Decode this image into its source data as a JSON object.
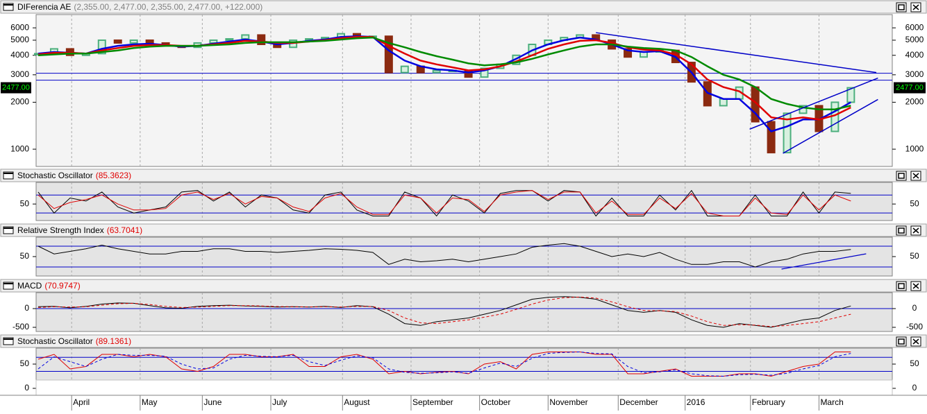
{
  "chart_data": [
    {
      "type": "candlestick",
      "title": "DIFerencia AE",
      "subtitle": "(2,355.00, 2,477.00, 2,355.00, 2,477.00, +122.000)",
      "values": [
        4100,
        4400,
        4000,
        4100,
        5000,
        4800,
        5000,
        4800,
        4600,
        4500,
        4800,
        5000,
        5100,
        5400,
        4700,
        4500,
        5000,
        5100,
        5200,
        5500,
        5300,
        5300,
        3100,
        3400,
        3100,
        3200,
        3200,
        2900,
        3300,
        3500,
        4000,
        4700,
        5000,
        5200,
        5400,
        5000,
        4400,
        3900,
        4200,
        4300,
        3600,
        2700,
        1900,
        2100,
        2500,
        1500,
        950,
        1700,
        1900,
        1300,
        2000,
        2477
      ],
      "up_color": "#4caf7d",
      "down_color": "#8b2a10",
      "series": [
        {
          "color": "#0000e0",
          "values": [
            4100,
            4200,
            4150,
            4100,
            4400,
            4600,
            4700,
            4750,
            4650,
            4550,
            4600,
            4750,
            4900,
            5050,
            4900,
            4700,
            4800,
            4950,
            5050,
            5250,
            5300,
            5250,
            4300,
            3700,
            3400,
            3250,
            3200,
            3100,
            3200,
            3400,
            3800,
            4300,
            4700,
            5000,
            5200,
            5050,
            4700,
            4300,
            4200,
            4250,
            3900,
            3100,
            2300,
            2100,
            2100,
            1700,
            1300,
            1400,
            1550,
            1550,
            1750,
            2000
          ]
        },
        {
          "color": "#e00000",
          "values": [
            4050,
            4150,
            4150,
            4100,
            4300,
            4450,
            4600,
            4650,
            4650,
            4600,
            4600,
            4700,
            4800,
            4950,
            4900,
            4800,
            4800,
            4900,
            5000,
            5150,
            5250,
            5250,
            4600,
            4100,
            3700,
            3500,
            3350,
            3200,
            3250,
            3400,
            3650,
            4000,
            4400,
            4700,
            4950,
            5000,
            4800,
            4500,
            4350,
            4300,
            4050,
            3500,
            2800,
            2500,
            2350,
            2000,
            1600,
            1550,
            1600,
            1550,
            1650,
            1850
          ]
        },
        {
          "color": "#008a00",
          "values": [
            4000,
            4050,
            4100,
            4100,
            4200,
            4300,
            4450,
            4550,
            4600,
            4600,
            4600,
            4650,
            4700,
            4800,
            4850,
            4850,
            4850,
            4900,
            4950,
            5050,
            5150,
            5200,
            4800,
            4500,
            4200,
            3950,
            3750,
            3550,
            3450,
            3500,
            3600,
            3800,
            4050,
            4300,
            4550,
            4700,
            4700,
            4550,
            4450,
            4400,
            4300,
            3900,
            3400,
            3000,
            2800,
            2500,
            2100,
            1950,
            1850,
            1800,
            1800,
            1900
          ]
        }
      ],
      "log_scale": true,
      "ylim": [
        775,
        7300
      ],
      "yticks": [
        1000,
        2000,
        3000,
        4000,
        5000,
        6000
      ],
      "last_price": {
        "value": 2477,
        "label": "2477.00"
      },
      "levels": [
        3070,
        2770
      ],
      "level_color": "#0000c8",
      "trendlines": [
        {
          "from": [
            35,
            5590
          ],
          "to": [
            52.6,
            3100
          ]
        },
        {
          "from": [
            44.65,
            1344
          ],
          "to": [
            52.7,
            2857
          ]
        },
        {
          "from": [
            46.74,
            941
          ],
          "to": [
            52.7,
            2083
          ]
        }
      ],
      "xlim": [
        -0.13,
        53.6
      ],
      "xticks": [
        {
          "value": 2.1,
          "label": "April"
        },
        {
          "value": 6.4,
          "label": "May"
        },
        {
          "value": 10.3,
          "label": "June"
        },
        {
          "value": 14.6,
          "label": "July"
        },
        {
          "value": 19.1,
          "label": "August"
        },
        {
          "value": 23.4,
          "label": "September"
        },
        {
          "value": 27.7,
          "label": "October"
        },
        {
          "value": 32,
          "label": "November"
        },
        {
          "value": 36.4,
          "label": "December"
        },
        {
          "value": 40.6,
          "label": "2016"
        },
        {
          "value": 44.7,
          "label": "February"
        },
        {
          "value": 49,
          "label": "March"
        }
      ]
    },
    {
      "type": "line",
      "title": "Stochastic Oscillator",
      "subtitle": "(85.3623)",
      "series": [
        {
          "color": "#000000",
          "values": [
            90,
            20,
            70,
            60,
            90,
            40,
            20,
            30,
            40,
            90,
            95,
            60,
            90,
            40,
            80,
            70,
            30,
            20,
            80,
            90,
            30,
            10,
            10,
            90,
            70,
            10,
            80,
            60,
            20,
            85,
            95,
            95,
            60,
            95,
            90,
            10,
            70,
            10,
            10,
            80,
            30,
            95,
            10,
            10,
            10,
            80,
            10,
            10,
            90,
            20,
            90,
            85.36
          ]
        },
        {
          "color": "#e00000",
          "values": [
            80,
            35,
            55,
            65,
            80,
            50,
            30,
            30,
            35,
            80,
            90,
            65,
            85,
            50,
            75,
            70,
            40,
            25,
            70,
            85,
            40,
            15,
            15,
            80,
            70,
            20,
            70,
            65,
            25,
            80,
            90,
            95,
            65,
            90,
            90,
            20,
            60,
            15,
            15,
            70,
            35,
            85,
            20,
            10,
            10,
            70,
            20,
            15,
            80,
            30,
            80,
            60
          ]
        }
      ],
      "ylim": [
        -5,
        122
      ],
      "yticks": [
        50
      ],
      "levels": [
        80,
        20
      ],
      "level_color": "#0000c8"
    },
    {
      "type": "line",
      "title": "Relative Strength Index",
      "subtitle": "(63.7041)",
      "series": [
        {
          "color": "#000000",
          "values": [
            70,
            55,
            60,
            65,
            72,
            65,
            60,
            55,
            55,
            60,
            60,
            65,
            65,
            60,
            60,
            58,
            60,
            62,
            65,
            64,
            62,
            58,
            35,
            45,
            40,
            42,
            45,
            40,
            45,
            50,
            55,
            68,
            72,
            75,
            70,
            60,
            50,
            55,
            50,
            58,
            45,
            35,
            35,
            40,
            40,
            30,
            40,
            45,
            55,
            60,
            60,
            63.7
          ]
        }
      ],
      "ylim": [
        12.7,
        87.3
      ],
      "yticks": [
        50
      ],
      "levels": [
        70,
        30
      ],
      "level_color": "#0000c8",
      "trendlines": [
        {
          "from": [
            46.65,
            26
          ],
          "to": [
            51.96,
            55.3
          ]
        }
      ]
    },
    {
      "type": "line",
      "title": "MACD",
      "subtitle": "(70.9747)",
      "series": [
        {
          "color": "#000000",
          "values": [
            50,
            60,
            20,
            60,
            120,
            150,
            140,
            80,
            20,
            10,
            60,
            80,
            90,
            70,
            60,
            40,
            50,
            40,
            60,
            30,
            80,
            50,
            -150,
            -400,
            -450,
            -350,
            -300,
            -250,
            -150,
            -50,
            100,
            250,
            300,
            320,
            300,
            250,
            100,
            -50,
            -100,
            -50,
            -100,
            -300,
            -450,
            -500,
            -400,
            -450,
            -500,
            -400,
            -300,
            -250,
            -50,
            70.97
          ]
        },
        {
          "color": "#e00000",
          "dash": true,
          "values": [
            30,
            50,
            40,
            50,
            90,
            130,
            140,
            110,
            60,
            30,
            40,
            60,
            80,
            80,
            70,
            55,
            50,
            45,
            50,
            40,
            60,
            55,
            -50,
            -250,
            -380,
            -400,
            -350,
            -300,
            -230,
            -150,
            -20,
            120,
            230,
            290,
            310,
            280,
            180,
            50,
            -50,
            -60,
            -80,
            -200,
            -350,
            -450,
            -430,
            -440,
            -480,
            -450,
            -400,
            -350,
            -250,
            -150
          ]
        }
      ],
      "ylim": [
        -611,
        426
      ],
      "yticks": [
        0,
        -500
      ],
      "levels": [
        0
      ],
      "level_color": "#0000c8"
    },
    {
      "type": "line",
      "title": "Stochastic Oscillator",
      "subtitle": "(89.1361)",
      "series": [
        {
          "color": "#e00000",
          "values": [
            60,
            70,
            40,
            45,
            70,
            70,
            65,
            70,
            65,
            40,
            35,
            45,
            70,
            70,
            65,
            65,
            70,
            45,
            45,
            65,
            70,
            60,
            30,
            35,
            30,
            33,
            35,
            30,
            50,
            55,
            40,
            70,
            75,
            75,
            75,
            70,
            70,
            30,
            30,
            35,
            40,
            25,
            25,
            25,
            30,
            30,
            25,
            35,
            45,
            50,
            75,
            75
          ]
        },
        {
          "color": "#0000e0",
          "dash": true,
          "values": [
            40,
            65,
            55,
            45,
            60,
            70,
            68,
            68,
            66,
            50,
            40,
            42,
            60,
            68,
            66,
            65,
            68,
            55,
            47,
            58,
            67,
            63,
            40,
            33,
            31,
            32,
            34,
            31,
            42,
            52,
            45,
            62,
            72,
            74,
            75,
            72,
            71,
            45,
            32,
            34,
            38,
            30,
            26,
            25,
            28,
            29,
            27,
            31,
            40,
            47,
            65,
            72
          ]
        }
      ],
      "ylim": [
        0,
        82.9
      ],
      "yticks": [
        50,
        0
      ],
      "levels": [
        64,
        35
      ],
      "level_color": "#0000c8"
    }
  ]
}
